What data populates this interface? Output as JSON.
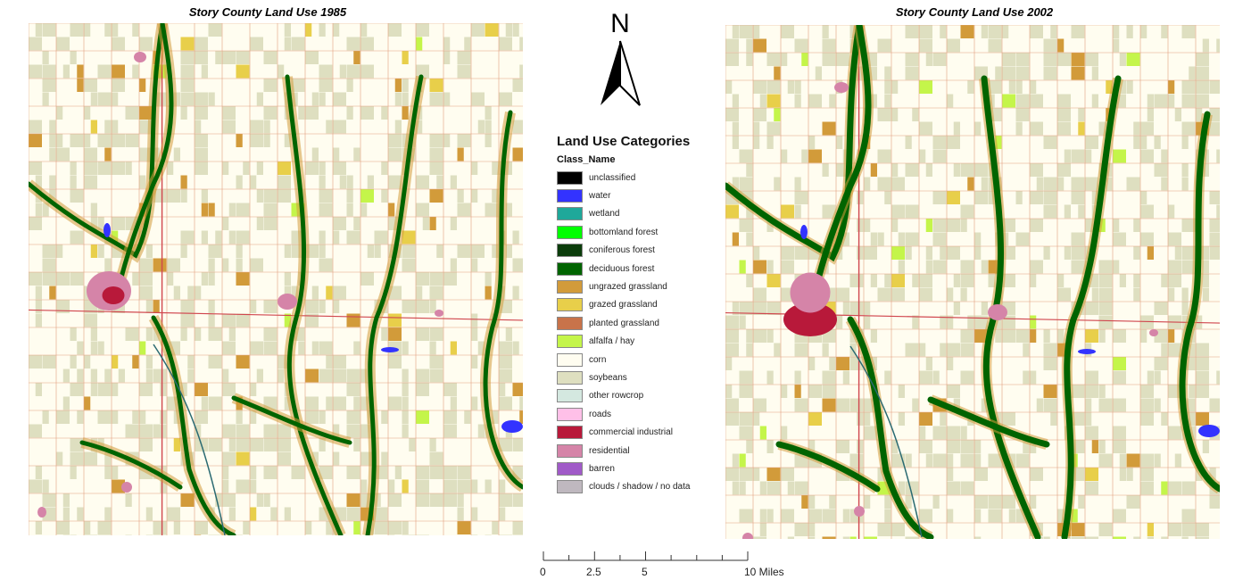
{
  "maps": [
    {
      "title": "Story County Land Use 1985"
    },
    {
      "title": "Story County Land Use 2002"
    }
  ],
  "north_arrow": {
    "label": "N"
  },
  "legend": {
    "title": "Land Use Categories",
    "subtitle": "Class_Name",
    "items": [
      {
        "label": "unclassified",
        "color": "#000000"
      },
      {
        "label": "water",
        "color": "#3333ff"
      },
      {
        "label": "wetland",
        "color": "#1fa89a"
      },
      {
        "label": "bottomland forest",
        "color": "#00ff00"
      },
      {
        "label": "coniferous forest",
        "color": "#0b3d0b"
      },
      {
        "label": "deciduous forest",
        "color": "#006400"
      },
      {
        "label": "ungrazed grassland",
        "color": "#d29b3a"
      },
      {
        "label": "grazed grassland",
        "color": "#e8cf4a"
      },
      {
        "label": "planted grassland",
        "color": "#c8734a"
      },
      {
        "label": "alfalfa / hay",
        "color": "#c4f54a"
      },
      {
        "label": "corn",
        "color": "#fffdf0"
      },
      {
        "label": "soybeans",
        "color": "#dedfc0"
      },
      {
        "label": "other rowcrop",
        "color": "#d4e8e0"
      },
      {
        "label": "roads",
        "color": "#ffc0e8"
      },
      {
        "label": "commercial industrial",
        "color": "#b8193a"
      },
      {
        "label": "residential",
        "color": "#d584a8"
      },
      {
        "label": "barren",
        "color": "#a05ac8"
      },
      {
        "label": "clouds / shadow / no data",
        "color": "#bfb8bf"
      }
    ]
  },
  "scale_bar": {
    "labels": [
      "0",
      "2.5",
      "5",
      "10 Miles"
    ]
  }
}
